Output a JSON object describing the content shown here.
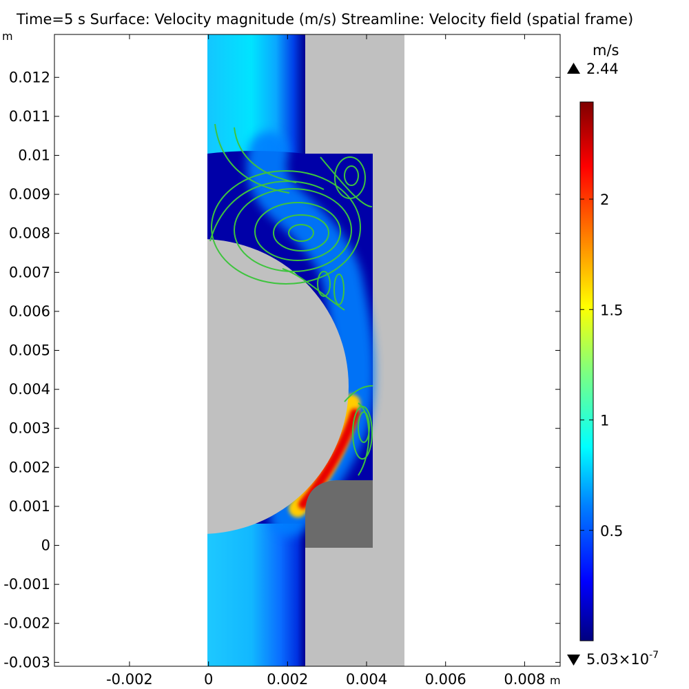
{
  "title": "Time=5 s  Surface: Velocity magnitude (m/s)  Streamline: Velocity field (spatial frame)",
  "chart_data": {
    "type": "heatmap",
    "title": "Time=5 s  Surface: Velocity magnitude (m/s)  Streamline: Velocity field (spatial frame)",
    "time": "Time=5 s",
    "surface": "Velocity magnitude (m/s)",
    "streamline": "Velocity field (spatial frame)",
    "x_unit": "m",
    "y_unit": "m",
    "xlim": [
      -0.0039,
      0.0089
    ],
    "ylim": [
      -0.0031,
      0.0131
    ],
    "x_ticks": [
      "-0.002",
      "0",
      "0.002",
      "0.004",
      "0.006",
      "0.008"
    ],
    "x_tick_values": [
      -0.002,
      0,
      0.002,
      0.004,
      0.006,
      0.008
    ],
    "y_ticks": [
      "0.012",
      "0.011",
      "0.01",
      "0.009",
      "0.008",
      "0.007",
      "0.006",
      "0.005",
      "0.004",
      "0.003",
      "0.002",
      "0.001",
      "0",
      "-0.001",
      "-0.002",
      "-0.003"
    ],
    "y_tick_values": [
      0.012,
      0.011,
      0.01,
      0.009,
      0.008,
      0.007,
      0.006,
      0.005,
      0.004,
      0.003,
      0.002,
      0.001,
      0,
      -0.001,
      -0.002,
      -0.003
    ],
    "colorbar": {
      "unit": "m/s",
      "max_label": "2.44",
      "min_label": "5.03×10",
      "min_exponent": "-7",
      "max": 2.44,
      "min": 5.03e-07,
      "ticks": [
        "2",
        "1.5",
        "1",
        "0.5"
      ],
      "tick_values": [
        2,
        1.5,
        1,
        0.5
      ],
      "colormap": [
        "#00007f",
        "#0000ff",
        "#007fff",
        "#00ffff",
        "#7fff7f",
        "#ffff00",
        "#ff7f00",
        "#ff0000",
        "#7f0000"
      ]
    },
    "colors": {
      "solid_light": "#c0c0c0",
      "solid_dark": "#6b6b6b",
      "streamline": "#3ec43e",
      "fluid_low": "#0000a8",
      "fluid_inlet": "#20c8ff"
    }
  }
}
